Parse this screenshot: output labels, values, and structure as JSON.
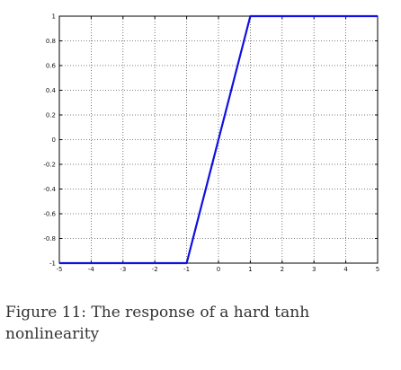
{
  "caption": {
    "label": "Figure 11:",
    "text": "The response of a hard tanh nonlinearity"
  },
  "chart_data": {
    "type": "line",
    "title": "",
    "xlabel": "",
    "ylabel": "",
    "xlim": [
      -5,
      5
    ],
    "ylim": [
      -1,
      1
    ],
    "xticks": [
      -5,
      -4,
      -3,
      -2,
      -1,
      0,
      1,
      2,
      3,
      4,
      5
    ],
    "yticks": [
      -1,
      -0.8,
      -0.6,
      -0.4,
      -0.2,
      0,
      0.2,
      0.4,
      0.6,
      0.8,
      1
    ],
    "xtick_labels": [
      "-5",
      "-4",
      "-3",
      "-2",
      "-1",
      "0",
      "1",
      "2",
      "3",
      "4",
      "5"
    ],
    "ytick_labels": [
      "-1",
      "-0.8",
      "-0.6",
      "-0.4",
      "-0.2",
      "0",
      "0.2",
      "0.4",
      "0.6",
      "0.8",
      "1"
    ],
    "grid": true,
    "grid_style": "dotted",
    "series": [
      {
        "x": [
          -5,
          -1,
          1,
          5
        ],
        "y": [
          -1,
          -1,
          1,
          1
        ],
        "color": "#1010e0"
      }
    ]
  }
}
